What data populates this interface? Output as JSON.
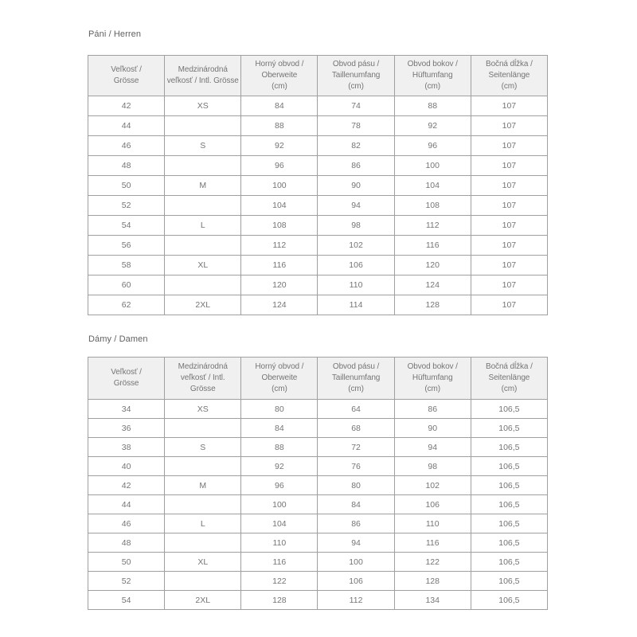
{
  "colors": {
    "page_bg": "#ffffff",
    "table_border": "#a0a0a0",
    "header_bg": "#f0f0f0",
    "cell_text": "#757575",
    "title_text": "#616161"
  },
  "tables": [
    {
      "title": "Páni / Herren",
      "headers": [
        "Veľkosť /\nGrösse",
        "Medzinárodná\nveľkosť / Intl. Grösse",
        "Horný obvod /\nOberweite\n(cm)",
        "Obvod pásu /\nTaillenumfang\n(cm)",
        "Obvod bokov /\nHüftumfang\n(cm)",
        "Bočná dĺžka /\nSeitenlänge\n(cm)"
      ],
      "rows": [
        [
          "42",
          "XS",
          "84",
          "74",
          "88",
          "107"
        ],
        [
          "44",
          "",
          "88",
          "78",
          "92",
          "107"
        ],
        [
          "46",
          "S",
          "92",
          "82",
          "96",
          "107"
        ],
        [
          "48",
          "",
          "96",
          "86",
          "100",
          "107"
        ],
        [
          "50",
          "M",
          "100",
          "90",
          "104",
          "107"
        ],
        [
          "52",
          "",
          "104",
          "94",
          "108",
          "107"
        ],
        [
          "54",
          "L",
          "108",
          "98",
          "112",
          "107"
        ],
        [
          "56",
          "",
          "112",
          "102",
          "116",
          "107"
        ],
        [
          "58",
          "XL",
          "116",
          "106",
          "120",
          "107"
        ],
        [
          "60",
          "",
          "120",
          "110",
          "124",
          "107"
        ],
        [
          "62",
          "2XL",
          "124",
          "114",
          "128",
          "107"
        ]
      ]
    },
    {
      "title": "Dámy / Damen",
      "headers": [
        "Veľkosť /\nGrösse",
        "Medzinárodná\nveľkosť / Intl.\nGrösse",
        "Horný obvod /\nOberweite\n(cm)",
        "Obvod pásu /\nTaillenumfang\n(cm)",
        "Obvod bokov /\nHüftumfang\n(cm)",
        "Bočná dĺžka /\nSeitenlänge\n(cm)"
      ],
      "rows": [
        [
          "34",
          "XS",
          "80",
          "64",
          "86",
          "106,5"
        ],
        [
          "36",
          "",
          "84",
          "68",
          "90",
          "106,5"
        ],
        [
          "38",
          "S",
          "88",
          "72",
          "94",
          "106,5"
        ],
        [
          "40",
          "",
          "92",
          "76",
          "98",
          "106,5"
        ],
        [
          "42",
          "M",
          "96",
          "80",
          "102",
          "106,5"
        ],
        [
          "44",
          "",
          "100",
          "84",
          "106",
          "106,5"
        ],
        [
          "46",
          "L",
          "104",
          "86",
          "110",
          "106,5"
        ],
        [
          "48",
          "",
          "110",
          "94",
          "116",
          "106,5"
        ],
        [
          "50",
          "XL",
          "116",
          "100",
          "122",
          "106,5"
        ],
        [
          "52",
          "",
          "122",
          "106",
          "128",
          "106,5"
        ],
        [
          "54",
          "2XL",
          "128",
          "112",
          "134",
          "106,5"
        ]
      ]
    }
  ]
}
